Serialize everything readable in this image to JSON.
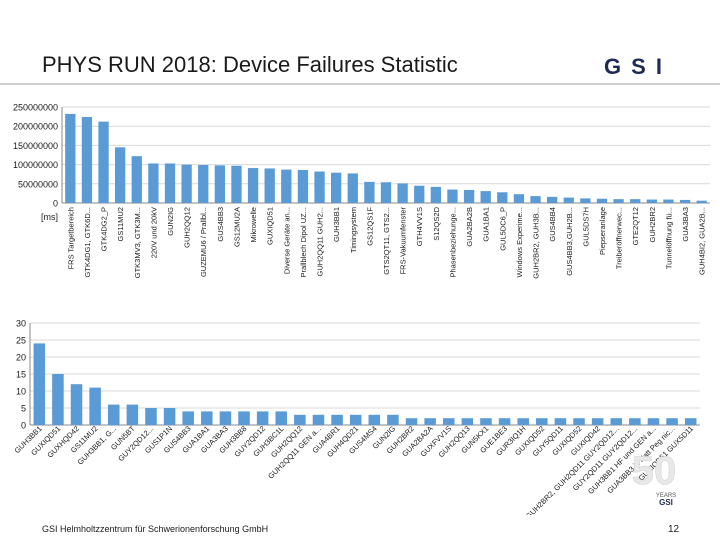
{
  "title": "PHYS RUN 2018: Device Failures Statistic",
  "logo_text": "GSI",
  "footer": "GSI Helmholtzzentrum für Schwerionenforschung GmbH",
  "page_number": "12",
  "badge": {
    "number": "50",
    "line1": "YEARS",
    "line2": "GSI"
  },
  "colors": {
    "bar": "#5b9bd5",
    "grid": "#d9d9d9",
    "axis": "#888888",
    "text": "#1a1a1a",
    "logo": "#1f2a55"
  },
  "chart_data": [
    {
      "type": "bar",
      "title": "",
      "xlabel": "",
      "ylabel": "[ms]",
      "ylim": [
        0,
        250000000
      ],
      "yticks": [
        "0",
        "50000000",
        "100000000",
        "150000000",
        "200000000",
        "250000000"
      ],
      "ytick_values": [
        0,
        50000000,
        100000000,
        150000000,
        200000000,
        250000000
      ],
      "grid": true,
      "categories": [
        "FRS Targetbereich",
        "GTK4DG1, GTK6D...",
        "GTK4DG2_P",
        "GS11MU2",
        "GTK3MV3, GTK3M...",
        "220V und 20kV",
        "GUN2IG",
        "GUH2QQ12",
        "GUZEMU6 / Prallbl...",
        "GUS4BB3",
        "GS12MU2A",
        "Mikrowelle",
        "GUXIQD51",
        "Diverse Geräte an...",
        "Prallblech Dipol UZ...",
        "GUH2QQ11 GUH2...",
        "GUH3BB1",
        "Timingsystem",
        "GS12QS1F",
        "GTS2QT11, GTS2...",
        "FRS-Vakuumfenster",
        "GTH4VV1S",
        "S12QS2D",
        "Phasenbeziehunge...",
        "GUA2BA2B",
        "GUA1BA1",
        "GUL5DC6_P",
        "Windows Experime...",
        "GUH2BR2, GUH3B...",
        "GUS4BB4",
        "GUS4BB3,GUH2B...",
        "GUL5DS7H",
        "Piepseranlage",
        "Treiberöffnerwec...",
        "GTE2QT12",
        "GUH2BR2",
        "Tunnelöffnung fü...",
        "GUA3BA3",
        "GUH4BI2, GUA2B..."
      ],
      "values": [
        232000000,
        224000000,
        212000000,
        145000000,
        122000000,
        103000000,
        103000000,
        100000000,
        99000000,
        98000000,
        97000000,
        91000000,
        90000000,
        87000000,
        86000000,
        82000000,
        79000000,
        77000000,
        55000000,
        54000000,
        51000000,
        45000000,
        42000000,
        35000000,
        34000000,
        31000000,
        28000000,
        23000000,
        18000000,
        16000000,
        14000000,
        12000000,
        11000000,
        10000000,
        10000000,
        9000000,
        9000000,
        8000000,
        6000000
      ]
    },
    {
      "type": "bar",
      "title": "",
      "xlabel": "",
      "ylabel": "",
      "ylim": [
        0,
        30
      ],
      "yticks": [
        "0",
        "5",
        "10",
        "15",
        "20",
        "25",
        "30"
      ],
      "ytick_values": [
        0,
        5,
        10,
        15,
        20,
        25,
        30
      ],
      "grid": true,
      "categories": [
        "GUH3BB1",
        "GUXIQD51",
        "GUXHQD42",
        "GS11MU2",
        "GUH3BB1, G...",
        "GUN5BT",
        "GUY2QD12...",
        "GUS1P1N",
        "GUS4BB3",
        "GUA1BA1",
        "GUA3BA3",
        "GUH3BB8",
        "GUY2QD12",
        "GUH3BC1L",
        "GUH2QQ12",
        "GUH2QQ11 GEN a...",
        "GUA4BR1",
        "GUH4QD21",
        "GUS4MS4",
        "GUN2IG",
        "GUH2BR2",
        "GUA2BA2A",
        "GUXFVV1S",
        "GUH2QQ13",
        "GUN5KX1",
        "GUE1BE3",
        "GUR3IQ1H",
        "GUXIQD52",
        "GUY5QD11",
        "GUXIQD52",
        "GUXIQD42",
        "GUH2BR2, GUH2QD11 GUY2QD12...",
        "GUY2QD11 GUY2QD12...",
        "GUH3BB1 HF und GEN a...",
        "GUA3BB3 in Hatt Peg nic...",
        "GUXIQD51 GUX5D11"
      ],
      "values": [
        24,
        15,
        12,
        11,
        6,
        6,
        5,
        5,
        4,
        4,
        4,
        4,
        4,
        4,
        3,
        3,
        3,
        3,
        3,
        3,
        2,
        2,
        2,
        2,
        2,
        2,
        2,
        2,
        2,
        2,
        2,
        2,
        2,
        2,
        2,
        2
      ]
    }
  ]
}
